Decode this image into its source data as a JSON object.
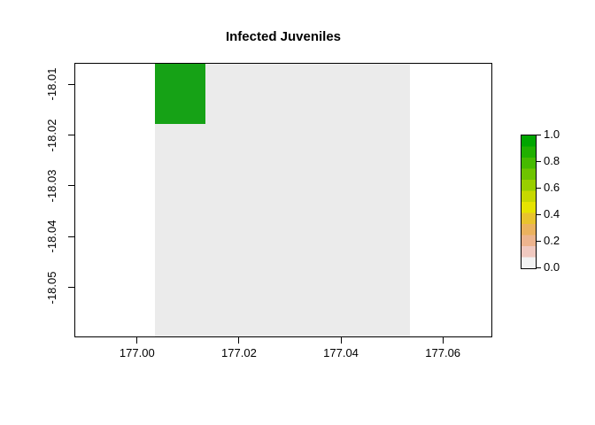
{
  "title": "Infected Juveniles",
  "colors": {
    "background": "#ffffff",
    "axis": "#000000",
    "zero_cell": "#ebebeb",
    "infected_cell": "#16a216"
  },
  "chart_data": {
    "type": "heatmap",
    "title": "Infected Juveniles",
    "xlabel": "",
    "ylabel": "",
    "xlim": [
      176.9877,
      177.0697
    ],
    "ylim": [
      -18.0598,
      -18.0058
    ],
    "grid": false,
    "x_ticks": [
      {
        "value": 177.0,
        "label": "177.00"
      },
      {
        "value": 177.02,
        "label": "177.02"
      },
      {
        "value": 177.04,
        "label": "177.04"
      },
      {
        "value": 177.06,
        "label": "177.06"
      }
    ],
    "y_ticks": [
      {
        "value": -18.01,
        "label": "-18.01"
      },
      {
        "value": -18.02,
        "label": "-18.02"
      },
      {
        "value": -18.03,
        "label": "-18.03"
      },
      {
        "value": -18.04,
        "label": "-18.04"
      },
      {
        "value": -18.05,
        "label": "-18.05"
      }
    ],
    "regions": [
      {
        "name": "zero-field",
        "value": 0.0,
        "x0": 177.0035,
        "x1": 177.0535,
        "y0": -18.0598,
        "y1": -18.0058,
        "color": "#ebebeb"
      },
      {
        "name": "infected-cell",
        "value": 1.0,
        "x0": 177.0035,
        "x1": 177.0135,
        "y0": -18.0178,
        "y1": -18.0058,
        "color": "#16a216"
      }
    ],
    "legend": {
      "position": "right",
      "range": [
        0.0,
        1.0
      ],
      "tick_labels": [
        "1.0",
        "0.8",
        "0.6",
        "0.4",
        "0.2",
        "0.0"
      ],
      "tick_values": [
        1.0,
        0.8,
        0.6,
        0.4,
        0.2,
        0.0
      ],
      "colors_bottom_to_top": [
        "#f2f2f2",
        "#f0c9c0",
        "#edb48e",
        "#ebb25e",
        "#e8c32e",
        "#e6e301",
        "#c7d800",
        "#99ce00",
        "#6ec400",
        "#46ba00",
        "#21b000",
        "#00a600"
      ]
    }
  }
}
